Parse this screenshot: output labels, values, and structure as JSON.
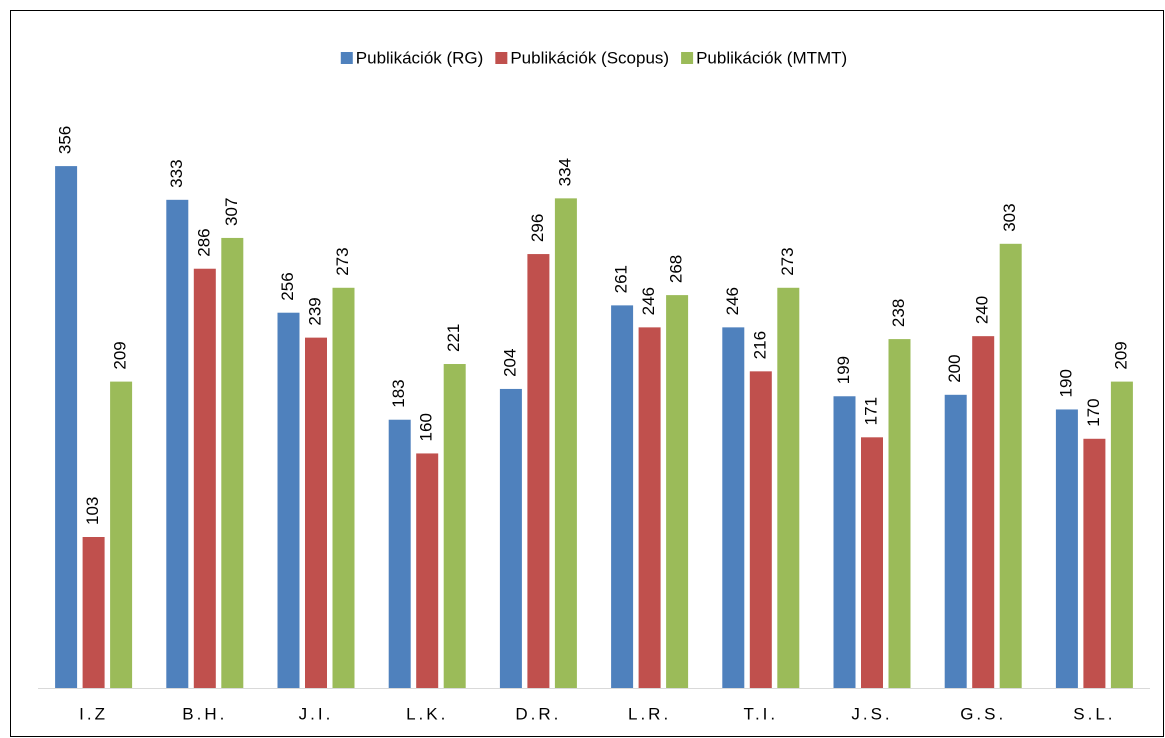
{
  "chart_data": {
    "type": "bar",
    "categories": [
      "I.Z",
      "B.H.",
      "J.I.",
      "L.K.",
      "D.R.",
      "L.R.",
      "T.I.",
      "J.S.",
      "G.S.",
      "S.L."
    ],
    "series": [
      {
        "name": "Publikációk (RG)",
        "color": "#4f81bd",
        "values": [
          356,
          333,
          256,
          183,
          204,
          261,
          246,
          199,
          200,
          190
        ]
      },
      {
        "name": "Publikációk (Scopus)",
        "color": "#c0504d",
        "values": [
          103,
          286,
          239,
          160,
          296,
          246,
          216,
          171,
          240,
          170
        ]
      },
      {
        "name": "Publikációk (MTMT)",
        "color": "#9bbb59",
        "values": [
          209,
          307,
          273,
          221,
          334,
          268,
          273,
          238,
          303,
          209
        ]
      }
    ],
    "legend": "top",
    "grid": false
  }
}
